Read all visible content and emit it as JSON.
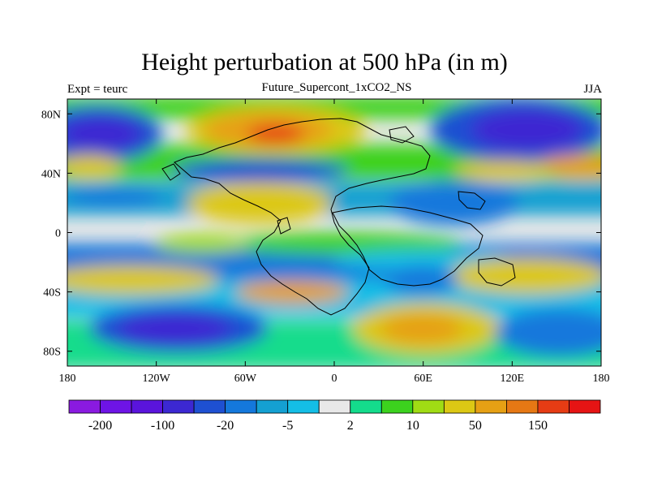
{
  "header": {
    "title": "Height perturbation at 500 hPa (in m)",
    "subtitle": "Future_Supercont_1xCO2_NS",
    "left_label": "Expt = teurc",
    "right_label": "JJA"
  },
  "map": {
    "projection": "cylindrical-equidistant",
    "lon_range": [
      -180,
      180
    ],
    "lat_range": [
      -90,
      90
    ],
    "x_ticks": [
      {
        "value": -180,
        "label": "180"
      },
      {
        "value": -120,
        "label": "120W"
      },
      {
        "value": -60,
        "label": "60W"
      },
      {
        "value": 0,
        "label": "0"
      },
      {
        "value": 60,
        "label": "60E"
      },
      {
        "value": 120,
        "label": "120E"
      },
      {
        "value": 180,
        "label": "180"
      }
    ],
    "y_ticks": [
      {
        "value": 80,
        "label": "80N"
      },
      {
        "value": 40,
        "label": "40N"
      },
      {
        "value": 0,
        "label": "0"
      },
      {
        "value": -40,
        "label": "40S"
      },
      {
        "value": -80,
        "label": "80S"
      }
    ],
    "background_color": "#e8e8e8"
  },
  "colorbar": {
    "colors": [
      "#8a1ae0",
      "#6e14e6",
      "#5a14dc",
      "#3c28d2",
      "#1e50d2",
      "#1478dc",
      "#14a0d2",
      "#14bee6",
      "#e8e8e8",
      "#14dc8c",
      "#3cd21e",
      "#a0dc14",
      "#dcc814",
      "#e6a014",
      "#e67814",
      "#e63c14",
      "#e61414"
    ],
    "labels": [
      {
        "boundary": 1,
        "text": "-200"
      },
      {
        "boundary": 3,
        "text": "-100"
      },
      {
        "boundary": 5,
        "text": "-20"
      },
      {
        "boundary": 7,
        "text": "-5"
      },
      {
        "boundary": 9,
        "text": "2"
      },
      {
        "boundary": 11,
        "text": "10"
      },
      {
        "boundary": 13,
        "text": "50"
      },
      {
        "boundary": 15,
        "text": "150"
      }
    ]
  }
}
